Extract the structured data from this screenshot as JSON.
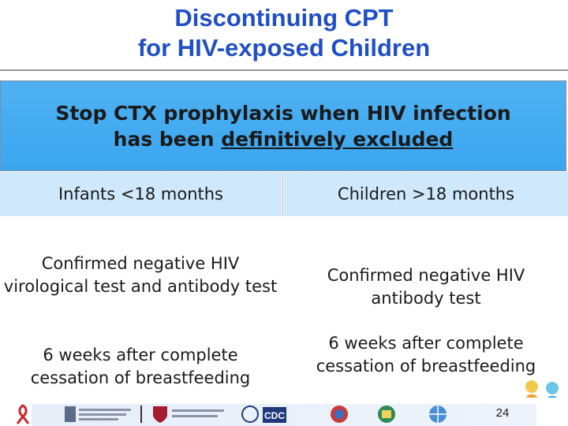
{
  "title": {
    "line1": "Discontinuing CPT",
    "line2": "for HIV-exposed Children"
  },
  "banner": {
    "line1": "Stop CTX prophylaxis when HIV infection",
    "line2_pre": "has been ",
    "line2_underlined": "definitively excluded"
  },
  "columns": [
    {
      "header": "Infants <18 months",
      "criteria": [
        "Confirmed negative HIV virological test and antibody test",
        "6 weeks after complete cessation of breastfeeding"
      ]
    },
    {
      "header": "Children >18 months",
      "criteria": [
        "Confirmed negative HIV antibody test",
        "6 weeks after complete cessation of breastfeeding"
      ]
    }
  ],
  "footer": {
    "page_number": "24",
    "logo_text_cdc": "CDC"
  },
  "colors": {
    "title": "#1f4fc4",
    "banner": "#45acf1",
    "column_header": "#cfe8fb"
  }
}
